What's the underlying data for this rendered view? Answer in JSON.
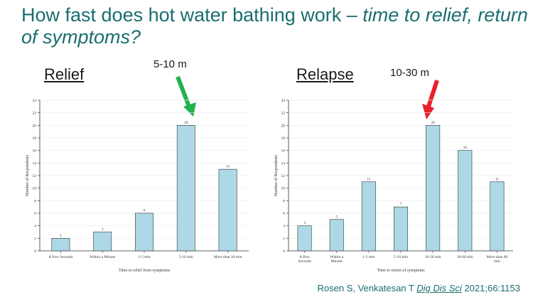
{
  "slide": {
    "title_plain": "How fast does hot water bathing work – ",
    "title_italic": "time to relief, return of symptoms?",
    "relief_label": "Relief",
    "relief_note": "5-10 m",
    "relapse_label": "Relapse",
    "relapse_note": "10-30 m",
    "citation_authors": "Rosen S, Venkatesan T ",
    "citation_journal": "Dig Dis Sci",
    "citation_ref": " 2021;66:1153",
    "colors": {
      "title": "#1a6e6e",
      "bar": "#add8e6",
      "green_arrow": "#22b14c",
      "red_arrow": "#e8202a"
    }
  },
  "chart_data": [
    {
      "type": "bar",
      "categories": [
        "A Few Seconds",
        "Within a Minute",
        "1-5 min",
        "5-10 min",
        "More than 10 min"
      ],
      "values": [
        2,
        3,
        6,
        20,
        13
      ],
      "xlabel": "Time to relief from symptoms",
      "ylabel": "Number of Respondents",
      "ylim": [
        0,
        24
      ],
      "yticks": [
        0,
        2,
        4,
        6,
        8,
        10,
        12,
        14,
        16,
        18,
        20,
        22,
        24
      ],
      "grid": true
    },
    {
      "type": "bar",
      "categories": [
        "A Few Seconds",
        "Within a Minute",
        "1-5 min",
        "5-10 min",
        "10-30 min",
        "30-60 min",
        "More than 60 min"
      ],
      "values": [
        4,
        5,
        11,
        7,
        20,
        16,
        11
      ],
      "xlabel": "Time to return of symptoms",
      "ylabel": "Number of Respondents",
      "ylim": [
        0,
        24
      ],
      "yticks": [
        0,
        2,
        4,
        6,
        8,
        10,
        12,
        14,
        16,
        18,
        20,
        22,
        24
      ],
      "grid": true
    }
  ]
}
